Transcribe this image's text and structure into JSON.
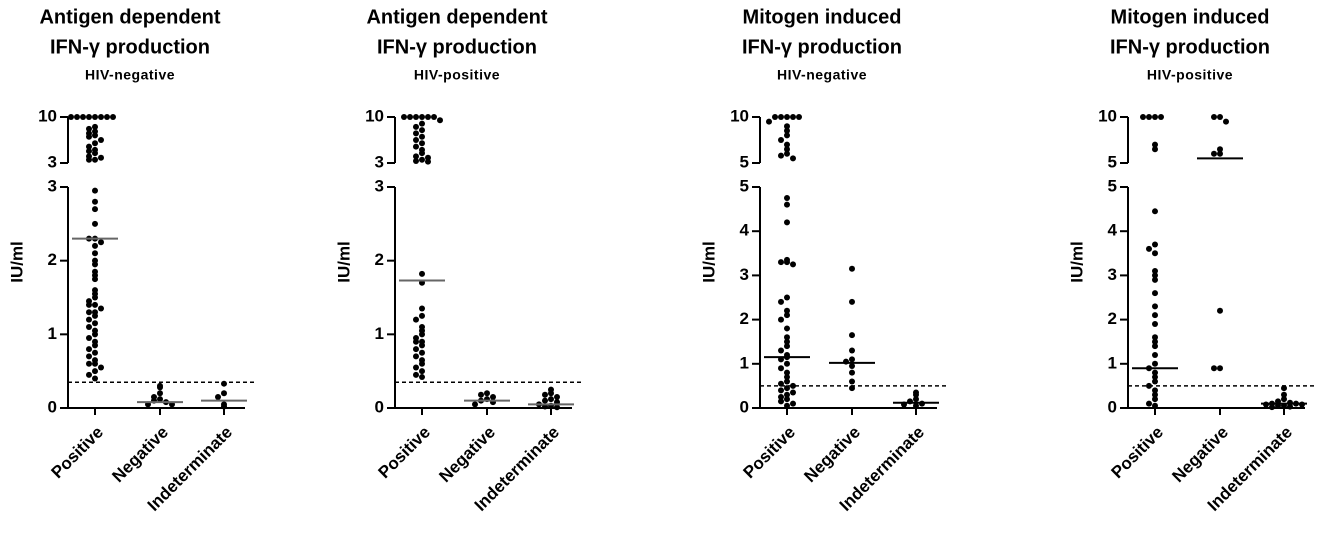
{
  "chart_data": [
    {
      "type": "strip",
      "title": [
        "Antigen dependent",
        "IFN-γ production"
      ],
      "subtitle": "HIV-negative",
      "ylabel": "IU/ml",
      "categories": [
        "Positive",
        "Negative",
        "Indeterminate"
      ],
      "values": [
        [
          10,
          10,
          10,
          10,
          10,
          10,
          10,
          10,
          8.5,
          8.2,
          7.8,
          7.5,
          7.2,
          7,
          6.5,
          6,
          5.5,
          5,
          4.8,
          4.5,
          4,
          3.8,
          3.5,
          3.5,
          2.95,
          2.8,
          2.7,
          2.5,
          2.3,
          2.3,
          2.25,
          2.2,
          2.1,
          2.0,
          1.95,
          1.85,
          1.8,
          1.75,
          1.6,
          1.55,
          1.5,
          1.45,
          1.4,
          1.4,
          1.35,
          1.3,
          1.3,
          1.25,
          1.2,
          1.15,
          1.1,
          1.05,
          1.0,
          0.95,
          0.9,
          0.85,
          0.8,
          0.75,
          0.7,
          0.65,
          0.6,
          0.6,
          0.55,
          0.5,
          0.45,
          0.4
        ],
        [
          0.3,
          0.28,
          0.2,
          0.15,
          0.12,
          0.1,
          0.08,
          0.05,
          0.05
        ],
        [
          0.33,
          0.2,
          0.15,
          0.05,
          0.02
        ]
      ],
      "medians": [
        2.3,
        0.08,
        0.1
      ],
      "median_color": "#666",
      "cutoff": 0.35,
      "ylim": [
        0,
        3
      ],
      "yticks": [
        0,
        1,
        2,
        3
      ],
      "ylim_upper": [
        3,
        10
      ],
      "yticks_upper": [
        3,
        10
      ]
    },
    {
      "type": "strip",
      "title": [
        "Antigen dependent",
        "IFN-γ production"
      ],
      "subtitle": "HIV-positive",
      "ylabel": "IU/ml",
      "categories": [
        "Positive",
        "Negative",
        "Indeterminate"
      ],
      "values": [
        [
          10,
          10,
          10,
          10,
          10,
          10,
          9.5,
          9,
          8.5,
          8,
          7.5,
          7,
          6.5,
          6,
          5.5,
          5,
          4.5,
          4,
          3.8,
          3.5,
          3.3,
          3.2,
          1.82,
          1.7,
          1.35,
          1.25,
          1.2,
          1.1,
          1.05,
          1.0,
          0.95,
          0.9,
          0.9,
          0.85,
          0.8,
          0.75,
          0.7,
          0.65,
          0.6,
          0.55,
          0.5,
          0.45,
          0.42
        ],
        [
          0.2,
          0.18,
          0.15,
          0.12,
          0.1,
          0.08,
          0.05
        ],
        [
          0.25,
          0.2,
          0.18,
          0.15,
          0.12,
          0.1,
          0.08,
          0.05,
          0.03,
          0.02,
          0.01
        ]
      ],
      "medians": [
        1.73,
        0.1,
        0.05
      ],
      "median_color": "#666",
      "cutoff": 0.35,
      "ylim": [
        0,
        3
      ],
      "yticks": [
        0,
        1,
        2,
        3
      ],
      "ylim_upper": [
        3,
        10
      ],
      "yticks_upper": [
        3,
        10
      ]
    },
    {
      "type": "strip",
      "title": [
        "Mitogen induced",
        "IFN-γ production"
      ],
      "subtitle": "HIV-negative",
      "ylabel": "IU/ml",
      "categories": [
        "Positive",
        "Negative",
        "Indeterminate"
      ],
      "values": [
        [
          10,
          10,
          10,
          10,
          10,
          9.5,
          9,
          8.5,
          8,
          7.5,
          7,
          6.5,
          6,
          5.8,
          5.5,
          4.75,
          4.6,
          4.2,
          3.35,
          3.3,
          3.3,
          3.25,
          2.5,
          2.4,
          2.2,
          2.1,
          2.0,
          1.8,
          1.6,
          1.5,
          1.4,
          1.3,
          1.2,
          1.15,
          1.1,
          1.0,
          0.9,
          0.8,
          0.7,
          0.6,
          0.55,
          0.5,
          0.45,
          0.4,
          0.35,
          0.3,
          0.25,
          0.2,
          0.15,
          0.1,
          0.05
        ],
        [
          3.15,
          2.4,
          1.65,
          1.3,
          1.1,
          1.05,
          0.95,
          0.8,
          0.6,
          0.45
        ],
        [
          0.35,
          0.3,
          0.2,
          0.15,
          0.1,
          0.08,
          0.05
        ]
      ],
      "medians": [
        1.15,
        1.02,
        0.12
      ],
      "median_color": "#000",
      "cutoff": 0.5,
      "ylim": [
        0,
        5
      ],
      "yticks": [
        0,
        1,
        2,
        3,
        4,
        5
      ],
      "ylim_upper": [
        5,
        10
      ],
      "yticks_upper": [
        5,
        10
      ]
    },
    {
      "type": "strip",
      "title": [
        "Mitogen induced",
        "IFN-γ production"
      ],
      "subtitle": "HIV-positive",
      "ylabel": "IU/ml",
      "categories": [
        "Positive",
        "Negative",
        "Indeterminate"
      ],
      "values": [
        [
          10,
          10,
          10,
          10,
          7,
          6.5,
          4.45,
          3.7,
          3.6,
          3.5,
          3.1,
          3.0,
          2.9,
          2.6,
          2.3,
          2.1,
          1.9,
          1.6,
          1.5,
          1.4,
          1.2,
          1.0,
          0.9,
          0.8,
          0.7,
          0.6,
          0.5,
          0.4,
          0.3,
          0.2,
          0.1,
          0.05
        ],
        [
          10,
          10,
          9.5,
          6.5,
          6,
          6,
          2.2,
          0.9,
          0.9
        ],
        [
          0.45,
          0.3,
          0.2,
          0.15,
          0.12,
          0.1,
          0.1,
          0.08,
          0.08,
          0.05,
          0.05,
          0.03,
          0.02
        ]
      ],
      "medians": [
        0.9,
        5.5,
        0.1
      ],
      "median_color": "#000",
      "cutoff": 0.5,
      "ylim": [
        0,
        5
      ],
      "yticks": [
        0,
        1,
        2,
        3,
        4,
        5
      ],
      "ylim_upper": [
        5,
        10
      ],
      "yticks_upper": [
        5,
        10
      ]
    }
  ]
}
